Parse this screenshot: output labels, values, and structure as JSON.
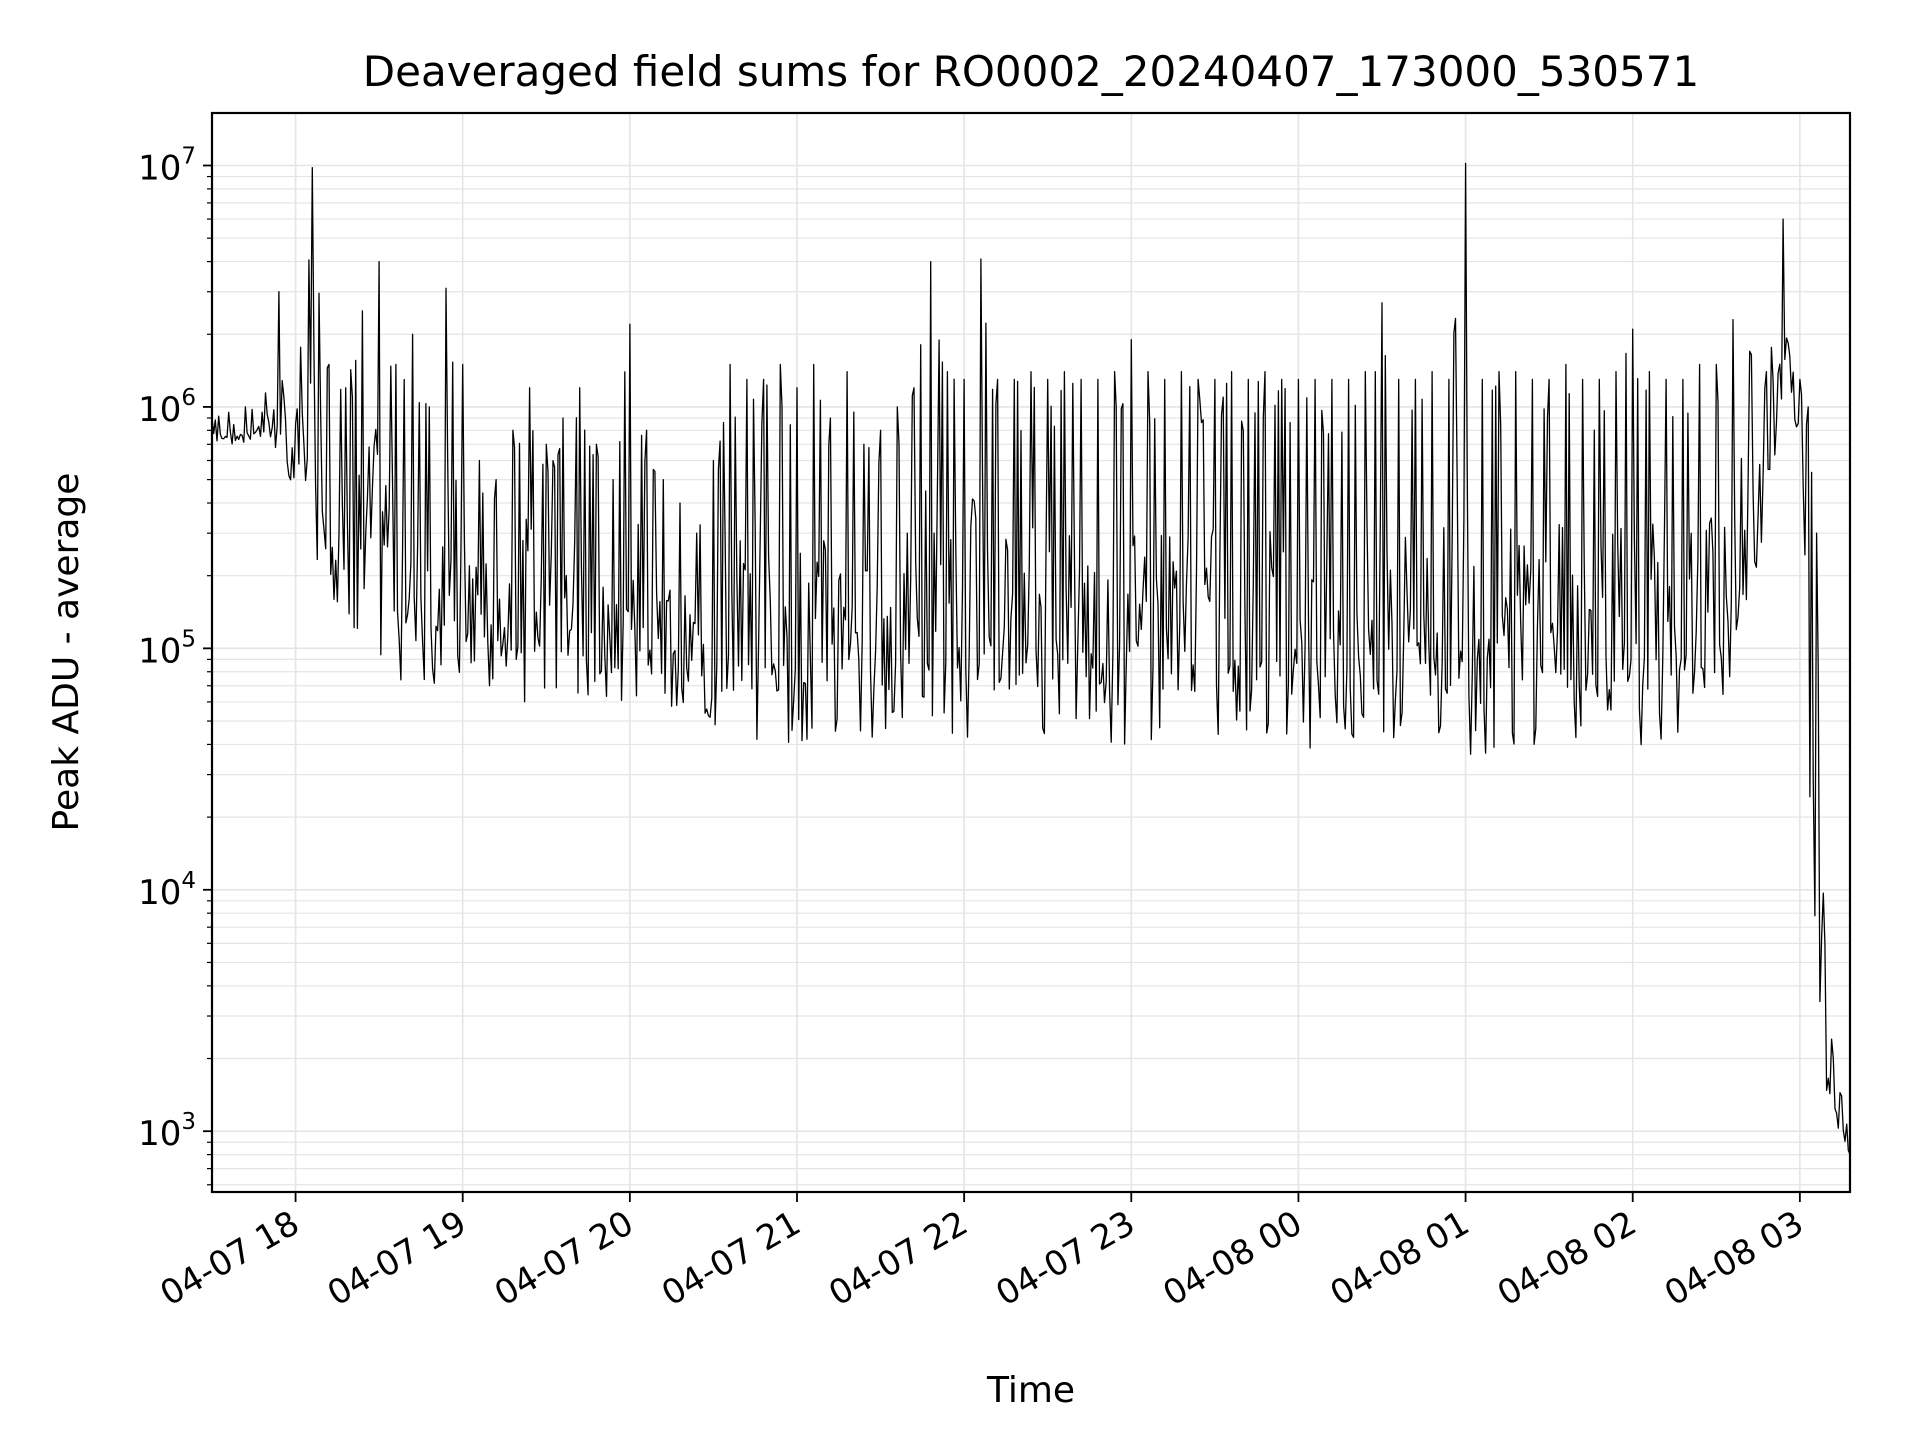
{
  "chart_data": {
    "type": "line",
    "title": "Deaveraged field sums for RO0002_20240407_173000_530571",
    "xlabel": "Time",
    "ylabel": "Peak ADU - average",
    "yscale": "log",
    "xlim": [
      "2024-04-07 17:30",
      "2024-04-08 03:18"
    ],
    "ylim": [
      560,
      16500000
    ],
    "grid": true,
    "legend": "none",
    "line_color": "#000000",
    "grid_color": "#e5e5e5",
    "x_ticks": [
      {
        "label": "04-07 18",
        "value": "2024-04-07 18:00"
      },
      {
        "label": "04-07 19",
        "value": "2024-04-07 19:00"
      },
      {
        "label": "04-07 20",
        "value": "2024-04-07 20:00"
      },
      {
        "label": "04-07 21",
        "value": "2024-04-07 21:00"
      },
      {
        "label": "04-07 22",
        "value": "2024-04-07 22:00"
      },
      {
        "label": "04-07 23",
        "value": "2024-04-07 23:00"
      },
      {
        "label": "04-08 00",
        "value": "2024-04-08 00:00"
      },
      {
        "label": "04-08 01",
        "value": "2024-04-08 01:00"
      },
      {
        "label": "04-08 02",
        "value": "2024-04-08 02:00"
      },
      {
        "label": "04-08 03",
        "value": "2024-04-08 03:00"
      }
    ],
    "y_ticks": [
      {
        "base": "10",
        "exp": "3",
        "value": 1000
      },
      {
        "base": "10",
        "exp": "4",
        "value": 10000
      },
      {
        "base": "10",
        "exp": "5",
        "value": 100000
      },
      {
        "base": "10",
        "exp": "6",
        "value": 1000000
      },
      {
        "base": "10",
        "exp": "7",
        "value": 10000000
      }
    ],
    "series": [
      {
        "x": [
          "2024-04-07 17:30",
          "2024-04-07 17:36",
          "2024-04-07 17:42",
          "2024-04-07 17:48",
          "2024-04-07 17:54",
          "2024-04-07 18:00",
          "2024-04-07 18:06",
          "2024-04-07 18:12",
          "2024-04-07 18:18",
          "2024-04-07 18:24",
          "2024-04-07 18:30",
          "2024-04-07 18:36",
          "2024-04-07 18:42",
          "2024-04-07 18:48",
          "2024-04-07 18:54",
          "2024-04-07 19:00",
          "2024-04-07 19:06",
          "2024-04-07 19:12",
          "2024-04-07 19:18",
          "2024-04-07 19:24",
          "2024-04-07 19:30",
          "2024-04-07 19:36",
          "2024-04-07 19:42",
          "2024-04-07 19:48",
          "2024-04-07 19:54",
          "2024-04-07 20:00",
          "2024-04-07 20:06",
          "2024-04-07 20:12",
          "2024-04-07 20:18",
          "2024-04-07 20:24",
          "2024-04-07 20:30",
          "2024-04-07 20:36",
          "2024-04-07 20:42",
          "2024-04-07 20:48",
          "2024-04-07 20:54",
          "2024-04-07 21:00",
          "2024-04-07 21:06",
          "2024-04-07 21:12",
          "2024-04-07 21:18",
          "2024-04-07 21:24",
          "2024-04-07 21:30",
          "2024-04-07 21:36",
          "2024-04-07 21:42",
          "2024-04-07 21:48",
          "2024-04-07 21:54",
          "2024-04-07 22:00",
          "2024-04-07 22:06",
          "2024-04-07 22:12",
          "2024-04-07 22:18",
          "2024-04-07 22:24",
          "2024-04-07 22:30",
          "2024-04-07 22:36",
          "2024-04-07 22:42",
          "2024-04-07 22:48",
          "2024-04-07 22:54",
          "2024-04-07 23:00",
          "2024-04-07 23:06",
          "2024-04-07 23:12",
          "2024-04-07 23:18",
          "2024-04-07 23:24",
          "2024-04-07 23:30",
          "2024-04-07 23:36",
          "2024-04-07 23:42",
          "2024-04-07 23:48",
          "2024-04-07 23:54",
          "2024-04-08 00:00",
          "2024-04-08 00:06",
          "2024-04-08 00:12",
          "2024-04-08 00:18",
          "2024-04-08 00:24",
          "2024-04-08 00:30",
          "2024-04-08 00:36",
          "2024-04-08 00:42",
          "2024-04-08 00:48",
          "2024-04-08 00:54",
          "2024-04-08 01:00",
          "2024-04-08 01:06",
          "2024-04-08 01:12",
          "2024-04-08 01:18",
          "2024-04-08 01:24",
          "2024-04-08 01:30",
          "2024-04-08 01:36",
          "2024-04-08 01:42",
          "2024-04-08 01:48",
          "2024-04-08 01:54",
          "2024-04-08 02:00",
          "2024-04-08 02:06",
          "2024-04-08 02:12",
          "2024-04-08 02:18",
          "2024-04-08 02:24",
          "2024-04-08 02:30",
          "2024-04-08 02:36",
          "2024-04-08 02:42",
          "2024-04-08 02:48",
          "2024-04-08 02:54",
          "2024-04-08 03:00",
          "2024-04-08 03:03",
          "2024-04-08 03:06",
          "2024-04-08 03:09",
          "2024-04-08 03:12",
          "2024-04-08 03:15",
          "2024-04-08 03:18"
        ],
        "hi": [
          900000,
          950000,
          1000000,
          950000,
          3000000,
          850000,
          9800000,
          1500000,
          1200000,
          2500000,
          4000000,
          1500000,
          2000000,
          1000000,
          3100000,
          1500000,
          600000,
          500000,
          800000,
          1200000,
          700000,
          900000,
          1200000,
          700000,
          500000,
          2200000,
          800000,
          500000,
          400000,
          300000,
          600000,
          1500000,
          1300000,
          1300000,
          1500000,
          1200000,
          1500000,
          900000,
          1400000,
          700000,
          800000,
          1000000,
          1200000,
          4000000,
          1400000,
          1300000,
          4100000,
          1300000,
          1300000,
          1400000,
          1300000,
          1400000,
          1300000,
          1300000,
          1400000,
          1900000,
          1400000,
          1300000,
          1400000,
          1300000,
          1300000,
          1400000,
          1300000,
          1400000,
          1300000,
          1300000,
          1300000,
          1300000,
          1300000,
          1400000,
          2700000,
          1300000,
          1300000,
          1400000,
          1300000,
          10200000,
          1300000,
          1400000,
          1400000,
          1300000,
          1300000,
          1500000,
          1300000,
          1300000,
          1400000,
          2100000,
          1400000,
          1300000,
          1300000,
          1500000,
          1500000,
          2300000,
          1700000,
          1400000,
          6000000,
          1300000,
          1000000,
          300000,
          6000,
          2000,
          1400,
          900
        ],
        "lo": [
          700000,
          700000,
          700000,
          750000,
          600000,
          400000,
          250000,
          180000,
          120000,
          80000,
          90000,
          70000,
          80000,
          70000,
          70000,
          70000,
          70000,
          65000,
          60000,
          60000,
          55000,
          55000,
          55000,
          50000,
          50000,
          65000,
          60000,
          55000,
          50000,
          55000,
          45000,
          45000,
          40000,
          40000,
          38000,
          35000,
          40000,
          40000,
          40000,
          40000,
          45000,
          45000,
          45000,
          45000,
          42000,
          42000,
          43000,
          42000,
          40000,
          40000,
          45000,
          45000,
          40000,
          33000,
          35000,
          40000,
          40000,
          40000,
          38000,
          38000,
          40000,
          40000,
          38000,
          38000,
          38000,
          38000,
          38000,
          38000,
          36000,
          36000,
          38000,
          38000,
          40000,
          40000,
          38000,
          35000,
          37000,
          35000,
          38000,
          40000,
          40000,
          40000,
          40000,
          40000,
          36000,
          35000,
          40000,
          40000,
          42000,
          45000,
          55000,
          80000,
          150000,
          350000,
          900000,
          700000,
          30000,
          3000,
          1500,
          1100,
          900,
          800
        ]
      }
    ]
  }
}
